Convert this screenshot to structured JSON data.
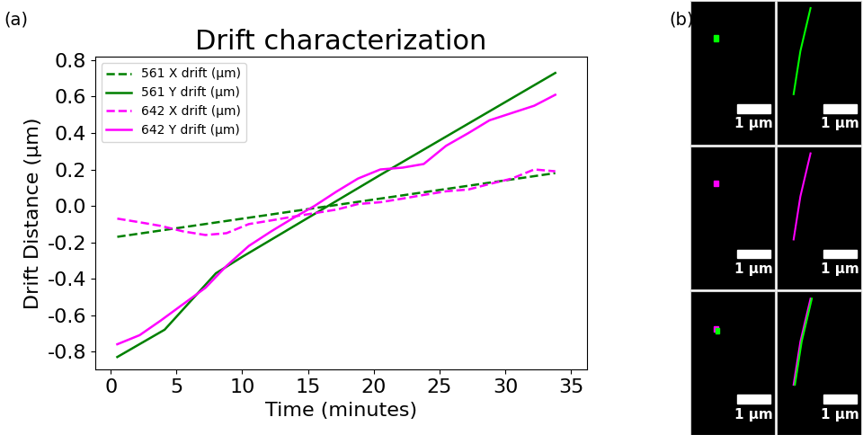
{
  "chart_data": {
    "type": "line",
    "title": "Drift characterization",
    "x_label": "Time (minutes)",
    "y_label": "Drift Distance (µm)",
    "xlim": [
      -1.2,
      36.2
    ],
    "xticks": [
      0,
      5,
      10,
      15,
      20,
      25,
      30,
      35
    ],
    "ylim": [
      -0.9,
      0.82
    ],
    "yticks": [
      -0.8,
      -0.6,
      -0.4,
      -0.2,
      0.0,
      0.2,
      0.4,
      0.6,
      0.8
    ],
    "legend": "upper left",
    "grid": false,
    "series": [
      {
        "name": "561 X drift (µm)",
        "color": "#008000",
        "line_style": "dashed",
        "x": [
          0.5,
          10.5,
          20.5,
          33.8
        ],
        "values": [
          -0.17,
          -0.065,
          0.04,
          0.18
        ]
      },
      {
        "name": "561 Y drift (µm)",
        "color": "#008000",
        "line_style": "solid",
        "x": [
          0.5,
          4.1,
          8.0,
          10.0,
          20.5,
          33.8
        ],
        "values": [
          -0.83,
          -0.68,
          -0.37,
          -0.28,
          0.17,
          0.73
        ]
      },
      {
        "name": "642 X drift (µm)",
        "color": "#ff00ff",
        "line_style": "dashed",
        "x": [
          0.5,
          2.2,
          3.8,
          5.5,
          7.2,
          8.8,
          10.5,
          12.2,
          13.8,
          15.5,
          17.2,
          18.8,
          20.5,
          22.2,
          23.8,
          25.5,
          27.2,
          28.8,
          30.5,
          32.2,
          33.8
        ],
        "values": [
          -0.07,
          -0.09,
          -0.11,
          -0.14,
          -0.16,
          -0.15,
          -0.1,
          -0.08,
          -0.06,
          -0.04,
          -0.02,
          0.01,
          0.02,
          0.04,
          0.06,
          0.08,
          0.09,
          0.12,
          0.15,
          0.2,
          0.19
        ]
      },
      {
        "name": "642 Y drift (µm)",
        "color": "#ff00ff",
        "line_style": "solid",
        "x": [
          0.5,
          2.2,
          3.8,
          5.5,
          7.2,
          8.8,
          10.5,
          12.2,
          13.8,
          15.5,
          17.2,
          18.8,
          20.5,
          22.2,
          23.8,
          25.5,
          27.2,
          28.8,
          30.5,
          32.2,
          33.8
        ],
        "values": [
          -0.76,
          -0.71,
          -0.63,
          -0.54,
          -0.45,
          -0.33,
          -0.22,
          -0.14,
          -0.07,
          0.0,
          0.08,
          0.15,
          0.2,
          0.21,
          0.23,
          0.33,
          0.4,
          0.47,
          0.51,
          0.55,
          0.61
        ]
      }
    ]
  },
  "panel_labels": [
    "(a)",
    "(b)"
  ],
  "image_panel": {
    "row_colors": [
      [
        "#00ff00"
      ],
      [
        "#ff00ff"
      ],
      [
        "#ff00ff",
        "#00ff00"
      ]
    ],
    "scale_bars": [
      "1 µm",
      "1 µm",
      "1 µm",
      "1 µm",
      "1 µm",
      "1 µm"
    ]
  }
}
